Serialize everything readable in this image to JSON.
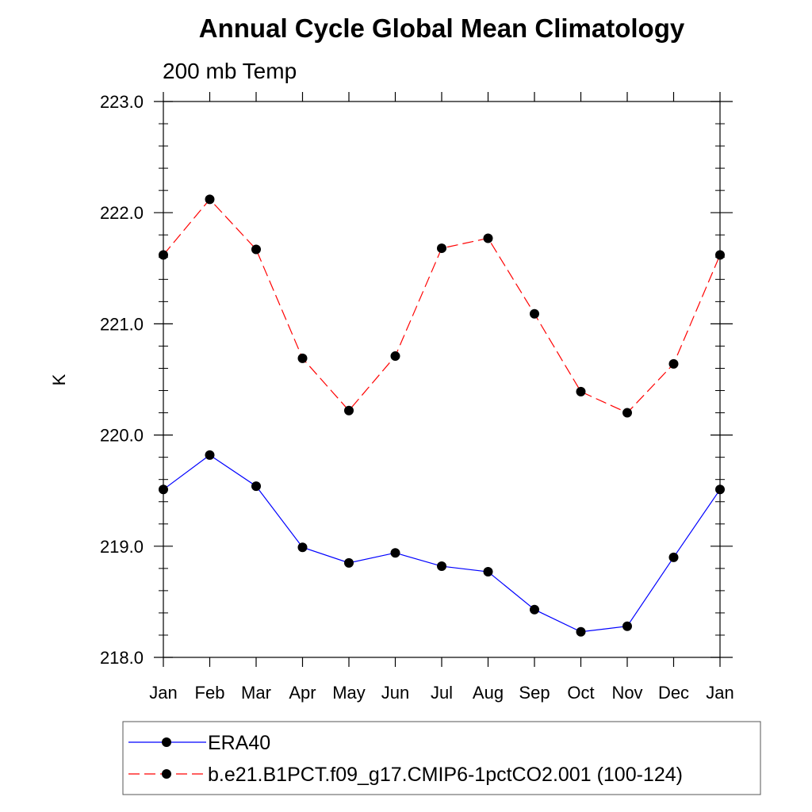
{
  "chart_data": {
    "type": "line",
    "title": "Annual Cycle Global Mean Climatology",
    "subtitle": "200 mb Temp",
    "xlabel": "",
    "ylabel": "K",
    "categories": [
      "Jan",
      "Feb",
      "Mar",
      "Apr",
      "May",
      "Jun",
      "Jul",
      "Aug",
      "Sep",
      "Oct",
      "Nov",
      "Dec",
      "Jan"
    ],
    "ylim": [
      218.0,
      223.0
    ],
    "yticks": [
      "218.0",
      "219.0",
      "220.0",
      "221.0",
      "222.0",
      "223.0"
    ],
    "grid": false,
    "legend_position": "bottom",
    "series": [
      {
        "name": "ERA40",
        "color": "#0000ff",
        "dash": "solid",
        "values": [
          219.51,
          219.82,
          219.54,
          218.99,
          218.85,
          218.94,
          218.82,
          218.77,
          218.43,
          218.23,
          218.28,
          218.9,
          219.51
        ]
      },
      {
        "name": "b.e21.B1PCT.f09_g17.CMIP6-1pctCO2.001 (100-124)",
        "color": "#ff0000",
        "dash": "dashed",
        "values": [
          221.62,
          222.12,
          221.67,
          220.69,
          220.22,
          220.71,
          221.68,
          221.77,
          221.09,
          220.39,
          220.2,
          220.64,
          221.62
        ]
      }
    ]
  }
}
